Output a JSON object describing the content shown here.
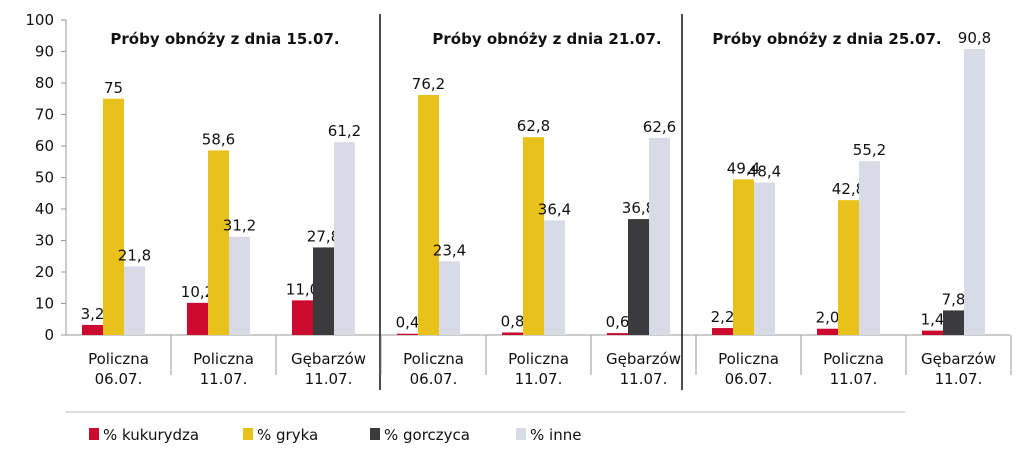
{
  "chart_data": {
    "type": "bar",
    "ylim": [
      0,
      100
    ],
    "yticks": [
      0,
      10,
      20,
      30,
      40,
      50,
      60,
      70,
      80,
      90,
      100
    ],
    "grid": false,
    "legend_position": "bottom",
    "series": [
      {
        "name": "% kukurydza",
        "color": "#cc0a2f"
      },
      {
        "name": "% gryka",
        "color": "#e8c21a"
      },
      {
        "name": "% gorczyca",
        "color": "#3b3b3d"
      },
      {
        "name": "% inne",
        "color": "#d8dae6"
      }
    ],
    "panels": [
      {
        "title": "Próby obnóży z dnia 15.07.",
        "groups": [
          {
            "line1": "Policzna",
            "line2": "06.07.",
            "values": [
              3.2,
              75,
              null,
              21.8
            ],
            "labels": [
              "3,2",
              "75",
              null,
              "21,8"
            ]
          },
          {
            "line1": "Policzna",
            "line2": "11.07.",
            "values": [
              10.2,
              58.6,
              null,
              31.2
            ],
            "labels": [
              "10,2",
              "58,6",
              null,
              "31,2"
            ]
          },
          {
            "line1": "Gębarzów",
            "line2": "11.07.",
            "values": [
              11.0,
              null,
              27.8,
              61.2
            ],
            "labels": [
              "11,0",
              null,
              "27,8",
              "61,2"
            ]
          }
        ]
      },
      {
        "title": "Próby obnóży z dnia 21.07.",
        "groups": [
          {
            "line1": "Policzna",
            "line2": "06.07.",
            "values": [
              0.4,
              76.2,
              null,
              23.4
            ],
            "labels": [
              "0,4",
              "76,2",
              null,
              "23,4"
            ]
          },
          {
            "line1": "Policzna",
            "line2": "11.07.",
            "values": [
              0.8,
              62.8,
              null,
              36.4
            ],
            "labels": [
              "0,8",
              "62,8",
              null,
              "36,4"
            ]
          },
          {
            "line1": "Gębarzów",
            "line2": "11.07.",
            "values": [
              0.6,
              null,
              36.8,
              62.6
            ],
            "labels": [
              "0,6",
              null,
              "36,8",
              "62,6"
            ]
          }
        ]
      },
      {
        "title": "Próby obnóży z dnia 25.07.",
        "groups": [
          {
            "line1": "Policzna",
            "line2": "06.07.",
            "values": [
              2.2,
              49.4,
              null,
              48.4
            ],
            "labels": [
              "2,2",
              "49,4",
              null,
              "48,4"
            ]
          },
          {
            "line1": "Policzna",
            "line2": "11.07.",
            "values": [
              2.0,
              42.8,
              null,
              55.2
            ],
            "labels": [
              "2,0",
              "42,8",
              null,
              "55,2"
            ]
          },
          {
            "line1": "Gębarzów",
            "line2": "11.07.",
            "values": [
              1.4,
              null,
              7.8,
              90.8
            ],
            "labels": [
              "1,4",
              null,
              "7,8",
              "90,8"
            ]
          }
        ]
      }
    ]
  }
}
